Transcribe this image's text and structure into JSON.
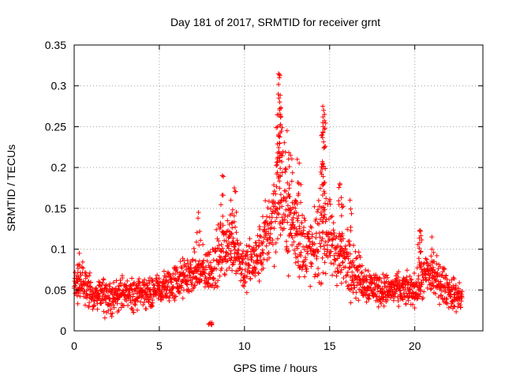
{
  "chart_data": {
    "type": "scatter",
    "title": "Day 181 of 2017, SRMTID for receiver grnt",
    "xlabel": "GPS time / hours",
    "ylabel": "SRMTID / TECUs",
    "xlim": [
      0,
      24
    ],
    "ylim": [
      0,
      0.35
    ],
    "xticks": [
      0,
      5,
      10,
      15,
      20
    ],
    "xtick_labels": [
      "0",
      "5",
      "10",
      "15",
      "20"
    ],
    "yticks": [
      0,
      0.05,
      0.1,
      0.15,
      0.2,
      0.25,
      0.3,
      0.35
    ],
    "ytick_labels": [
      "0",
      "0.05",
      "0.1",
      "0.15",
      "0.2",
      "0.25",
      "0.3",
      "0.35"
    ],
    "grid": true,
    "marker": "+",
    "color": "#ff0000",
    "series": [
      {
        "name": "SRMTID",
        "envelope": [
          {
            "x": 0.0,
            "mean": 0.055,
            "spread": 0.02
          },
          {
            "x": 0.5,
            "mean": 0.06,
            "spread": 0.025
          },
          {
            "x": 1.0,
            "mean": 0.045,
            "spread": 0.02
          },
          {
            "x": 2.0,
            "mean": 0.04,
            "spread": 0.02
          },
          {
            "x": 3.0,
            "mean": 0.045,
            "spread": 0.02
          },
          {
            "x": 4.0,
            "mean": 0.045,
            "spread": 0.02
          },
          {
            "x": 5.0,
            "mean": 0.05,
            "spread": 0.02
          },
          {
            "x": 6.0,
            "mean": 0.06,
            "spread": 0.025
          },
          {
            "x": 7.0,
            "mean": 0.07,
            "spread": 0.025
          },
          {
            "x": 8.0,
            "mean": 0.075,
            "spread": 0.03
          },
          {
            "x": 8.7,
            "mean": 0.1,
            "spread": 0.04
          },
          {
            "x": 9.3,
            "mean": 0.11,
            "spread": 0.04
          },
          {
            "x": 10.0,
            "mean": 0.075,
            "spread": 0.03
          },
          {
            "x": 10.8,
            "mean": 0.09,
            "spread": 0.035
          },
          {
            "x": 11.5,
            "mean": 0.13,
            "spread": 0.05
          },
          {
            "x": 12.0,
            "mean": 0.17,
            "spread": 0.08
          },
          {
            "x": 12.6,
            "mean": 0.14,
            "spread": 0.06
          },
          {
            "x": 13.2,
            "mean": 0.11,
            "spread": 0.05
          },
          {
            "x": 14.0,
            "mean": 0.095,
            "spread": 0.04
          },
          {
            "x": 14.6,
            "mean": 0.13,
            "spread": 0.07
          },
          {
            "x": 15.2,
            "mean": 0.1,
            "spread": 0.04
          },
          {
            "x": 16.0,
            "mean": 0.085,
            "spread": 0.04
          },
          {
            "x": 17.0,
            "mean": 0.06,
            "spread": 0.025
          },
          {
            "x": 18.0,
            "mean": 0.05,
            "spread": 0.02
          },
          {
            "x": 19.0,
            "mean": 0.05,
            "spread": 0.02
          },
          {
            "x": 20.0,
            "mean": 0.05,
            "spread": 0.02
          },
          {
            "x": 20.8,
            "mean": 0.07,
            "spread": 0.03
          },
          {
            "x": 21.5,
            "mean": 0.06,
            "spread": 0.025
          },
          {
            "x": 22.2,
            "mean": 0.045,
            "spread": 0.02
          },
          {
            "x": 22.8,
            "mean": 0.04,
            "spread": 0.02
          }
        ],
        "peaks": [
          {
            "x": 12.0,
            "y": 0.315
          },
          {
            "x": 12.05,
            "y": 0.31
          },
          {
            "x": 11.98,
            "y": 0.29
          },
          {
            "x": 12.02,
            "y": 0.285
          },
          {
            "x": 12.1,
            "y": 0.265
          },
          {
            "x": 12.0,
            "y": 0.24
          },
          {
            "x": 12.05,
            "y": 0.23
          },
          {
            "x": 12.5,
            "y": 0.245
          },
          {
            "x": 12.7,
            "y": 0.215
          },
          {
            "x": 14.6,
            "y": 0.275
          },
          {
            "x": 14.65,
            "y": 0.27
          },
          {
            "x": 14.7,
            "y": 0.265
          },
          {
            "x": 14.6,
            "y": 0.255
          },
          {
            "x": 14.7,
            "y": 0.225
          },
          {
            "x": 14.6,
            "y": 0.205
          },
          {
            "x": 8.7,
            "y": 0.19
          },
          {
            "x": 9.2,
            "y": 0.16
          },
          {
            "x": 9.4,
            "y": 0.175
          },
          {
            "x": 13.1,
            "y": 0.21
          },
          {
            "x": 13.2,
            "y": 0.18
          },
          {
            "x": 15.7,
            "y": 0.155
          },
          {
            "x": 15.6,
            "y": 0.18
          },
          {
            "x": 16.2,
            "y": 0.16
          },
          {
            "x": 20.3,
            "y": 0.123
          },
          {
            "x": 20.35,
            "y": 0.122
          },
          {
            "x": 21.0,
            "y": 0.115
          },
          {
            "x": 7.3,
            "y": 0.145
          },
          {
            "x": 8.0,
            "y": 0.01
          },
          {
            "x": 0.3,
            "y": 0.095
          }
        ]
      }
    ]
  }
}
